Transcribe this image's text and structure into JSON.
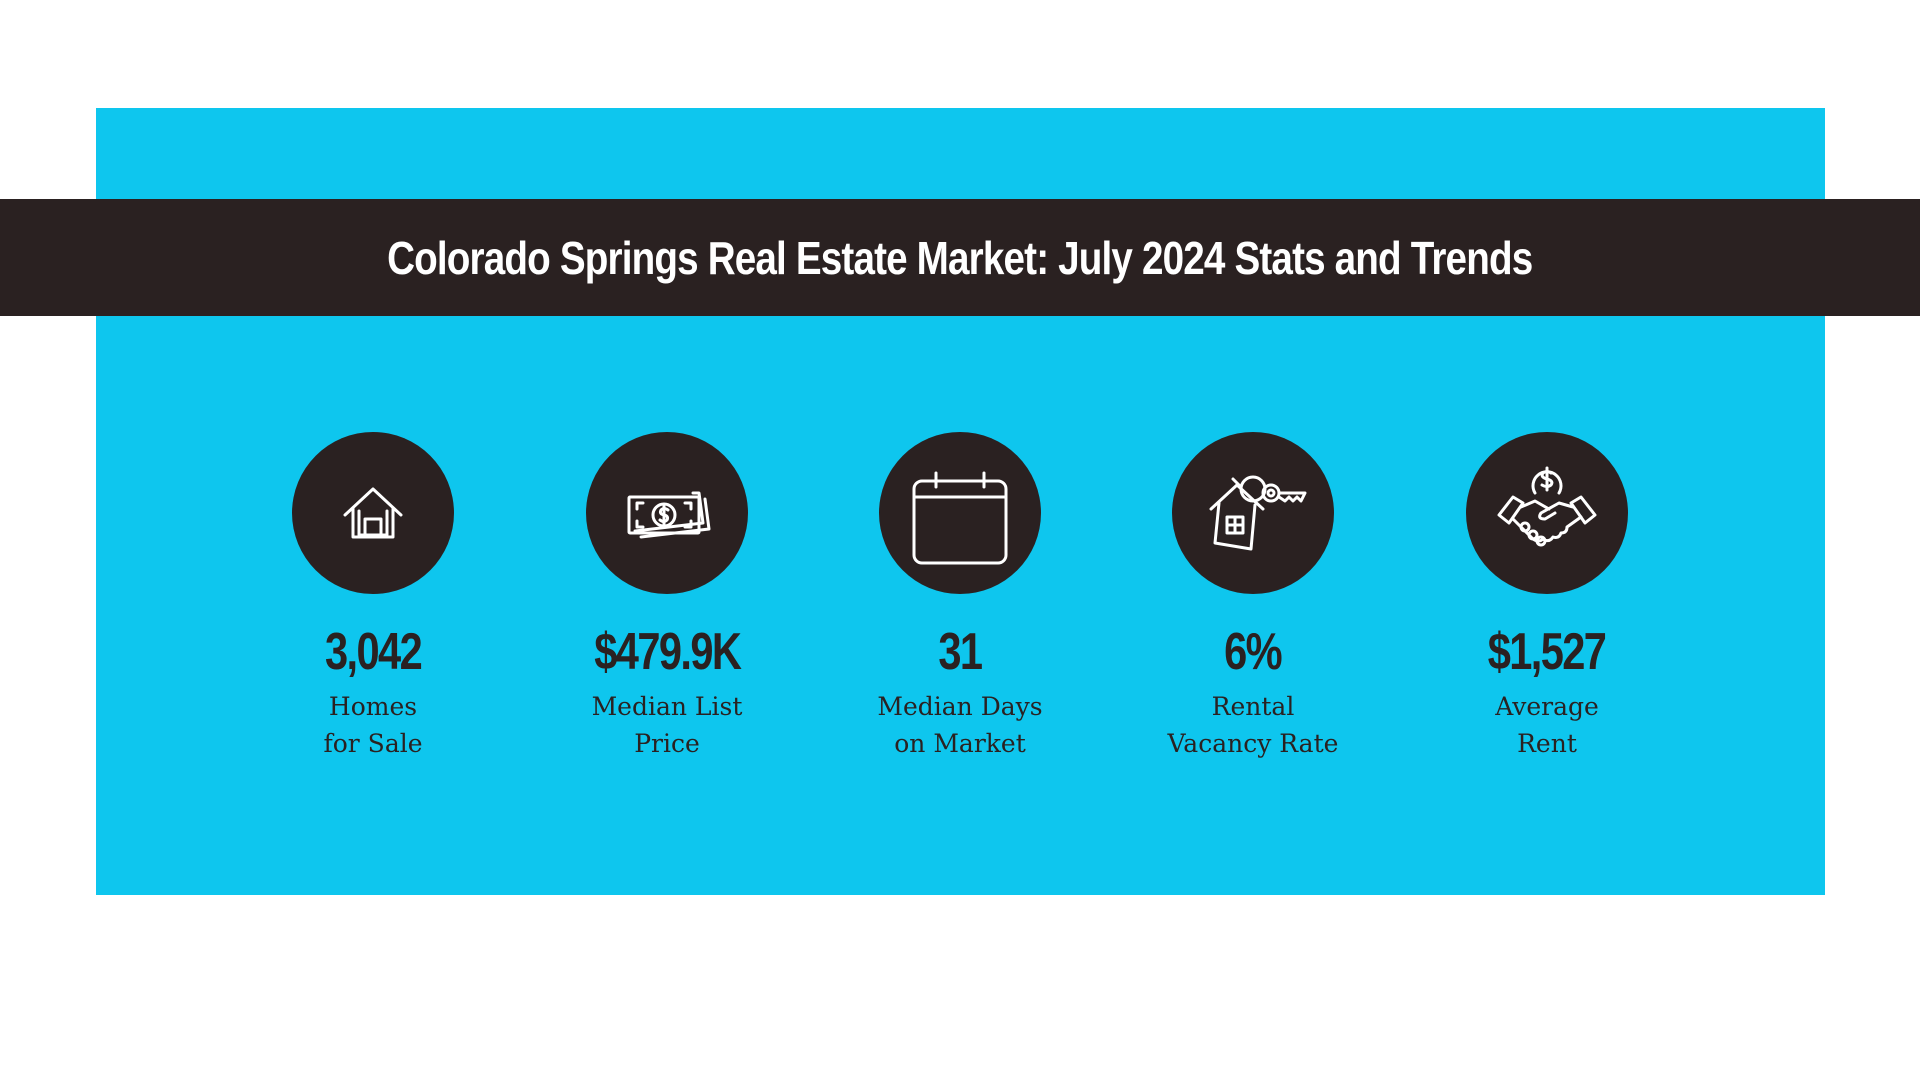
{
  "title": "Colorado Springs Real Estate Market: July 2024 Stats and Trends",
  "colors": {
    "background": "#ffffff",
    "panel": "#0ec6ee",
    "dark": "#2a2121"
  },
  "stats": [
    {
      "icon": "house-icon",
      "value": "3,042",
      "label_lines": [
        "Homes",
        "for Sale"
      ]
    },
    {
      "icon": "money-bill-icon",
      "value": "$479.9K",
      "label_lines": [
        "Median List",
        "Price"
      ]
    },
    {
      "icon": "calendar-icon",
      "value": "31",
      "label_lines": [
        "Median Days",
        "on Market"
      ]
    },
    {
      "icon": "house-key-icon",
      "value": "6%",
      "label_lines": [
        "Rental",
        "Vacancy Rate"
      ]
    },
    {
      "icon": "handshake-dollar-icon",
      "value": "$1,527",
      "label_lines": [
        "Average",
        "Rent"
      ]
    }
  ]
}
